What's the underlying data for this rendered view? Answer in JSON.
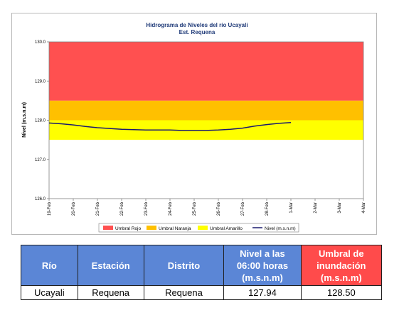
{
  "chart_data": {
    "type": "line",
    "title": "Hidrograma de Niveles del río Ucayali",
    "subtitle": "Est. Requena",
    "ylabel": "Nivel (m.s.n.m)",
    "ylim": [
      126.0,
      130.0
    ],
    "yticks": [
      "126.0",
      "127.0",
      "128.0",
      "129.0",
      "130.0"
    ],
    "categories": [
      "19-Feb",
      "20-Feb",
      "21-Feb",
      "22-Feb",
      "23-Feb",
      "24-Feb",
      "25-Feb",
      "26-Feb",
      "27-Feb",
      "28-Feb",
      "1-Mar",
      "2-Mar",
      "3-Mar",
      "4-Mar"
    ],
    "bands": [
      {
        "name": "Umbral Rojo",
        "from": 128.5,
        "to": 130.0,
        "color": "#ff5050"
      },
      {
        "name": "Umbral Naranja",
        "from": 128.0,
        "to": 128.5,
        "color": "#ffc000"
      },
      {
        "name": "Umbral Amarillo",
        "from": 127.5,
        "to": 128.0,
        "color": "#ffff00"
      }
    ],
    "series": [
      {
        "name": "Nivel (m.s.n.m)",
        "color": "#1a1a6e",
        "x": [
          0,
          0.5,
          1,
          1.5,
          2,
          2.5,
          3,
          3.5,
          4,
          4.5,
          5,
          5.5,
          6,
          6.5,
          7,
          7.5,
          8,
          8.5,
          9,
          9.5,
          10
        ],
        "values": [
          127.93,
          127.91,
          127.88,
          127.84,
          127.81,
          127.79,
          127.77,
          127.76,
          127.75,
          127.75,
          127.75,
          127.74,
          127.74,
          127.74,
          127.75,
          127.77,
          127.8,
          127.85,
          127.89,
          127.92,
          127.94
        ]
      }
    ],
    "legend_position": "bottom",
    "grid": false
  },
  "table": {
    "headers": [
      "Río",
      "Estación",
      "Distrito",
      "Nivel a las 06:00 horas (m.s.n.m)",
      "Umbral de inundación (m.s.n.m)"
    ],
    "row": [
      "Ucayali",
      "Requena",
      "Requena",
      "127.94",
      "128.50"
    ],
    "header_color": "#5b86d6",
    "threshold_header_color": "#ff4b4b"
  }
}
